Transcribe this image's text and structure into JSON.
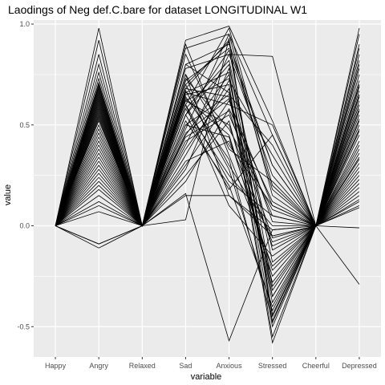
{
  "chart_data": {
    "type": "line",
    "title": "Laodings of Neg def.C.bare for dataset LONGITUDINAL W1",
    "xlabel": "variable",
    "ylabel": "value",
    "categories": [
      "Happy",
      "Angry",
      "Relaxed",
      "Sad",
      "Anxious",
      "Stressed",
      "Cheerful",
      "Depressed"
    ],
    "ylim": [
      -0.65,
      1.02
    ],
    "yticks": [
      -0.5,
      0.0,
      0.5,
      1.0
    ],
    "ytick_labels": [
      "-0.5",
      "0.0",
      "0.5",
      "1.0"
    ],
    "grid": true,
    "panel_color": "#ebebeb",
    "grid_color": "#ffffff",
    "line_color": "#000000",
    "series": [
      {
        "values": [
          0,
          0.98,
          0,
          0.92,
          0.99,
          0.52,
          0,
          0.98
        ]
      },
      {
        "values": [
          0,
          0.92,
          0,
          0.88,
          0.95,
          0.45,
          0,
          0.95
        ]
      },
      {
        "values": [
          0,
          0.85,
          0,
          0.8,
          0.9,
          0.3,
          0,
          0.9
        ]
      },
      {
        "values": [
          0,
          0.8,
          0,
          0.78,
          0.85,
          0.84,
          0,
          0.88
        ]
      },
      {
        "values": [
          0,
          0.76,
          0,
          0.75,
          0.4,
          0.1,
          0,
          0.82
        ]
      },
      {
        "values": [
          0,
          0.73,
          0,
          0.72,
          0.88,
          -0.3,
          0,
          0.8
        ]
      },
      {
        "values": [
          0,
          0.71,
          0,
          0.68,
          0.92,
          -0.45,
          0,
          0.78
        ]
      },
      {
        "values": [
          0,
          0.7,
          0,
          0.66,
          0.6,
          0.5,
          0,
          0.75
        ]
      },
      {
        "values": [
          0,
          0.69,
          0,
          0.9,
          0.35,
          -0.2,
          0,
          0.72
        ]
      },
      {
        "values": [
          0,
          0.68,
          0,
          0.65,
          0.7,
          -0.55,
          0,
          0.7
        ]
      },
      {
        "values": [
          0,
          0.67,
          0,
          0.6,
          0.98,
          0.2,
          0,
          0.69
        ]
      },
      {
        "values": [
          0,
          0.66,
          0,
          0.62,
          0.5,
          -0.1,
          0,
          0.67
        ]
      },
      {
        "values": [
          0,
          0.65,
          0,
          0.7,
          0.3,
          -0.05,
          0,
          0.65
        ]
      },
      {
        "values": [
          0,
          0.64,
          0,
          0.58,
          0.25,
          0.0,
          0,
          0.64
        ]
      },
      {
        "values": [
          0,
          0.63,
          0,
          0.55,
          0.8,
          -0.35,
          0,
          0.62
        ]
      },
      {
        "values": [
          0,
          0.62,
          0,
          0.52,
          0.2,
          -0.4,
          0,
          0.6
        ]
      },
      {
        "values": [
          0,
          0.61,
          0,
          0.5,
          0.65,
          0.4,
          0,
          0.58
        ]
      },
      {
        "values": [
          0,
          0.6,
          0,
          0.48,
          0.95,
          0.15,
          0,
          0.57
        ]
      },
      {
        "values": [
          0,
          0.59,
          0,
          0.63,
          0.45,
          -0.25,
          0,
          0.55
        ]
      },
      {
        "values": [
          0,
          0.58,
          0,
          0.45,
          0.75,
          -0.5,
          0,
          0.53
        ]
      },
      {
        "values": [
          0,
          0.57,
          0,
          0.42,
          0.55,
          0.05,
          0,
          0.52
        ]
      },
      {
        "values": [
          0,
          0.56,
          0,
          0.6,
          0.1,
          -0.15,
          0,
          0.5
        ]
      },
      {
        "values": [
          0,
          0.55,
          0,
          0.4,
          0.85,
          0.25,
          0,
          0.48
        ]
      },
      {
        "values": [
          0,
          0.54,
          0,
          0.38,
          0.68,
          -0.58,
          0,
          0.47
        ]
      },
      {
        "values": [
          0,
          0.53,
          0,
          0.35,
          0.72,
          0.35,
          0,
          0.45
        ]
      },
      {
        "values": [
          0,
          0.52,
          0,
          0.32,
          0.42,
          -0.08,
          0,
          0.42
        ]
      },
      {
        "values": [
          0,
          0.5,
          0,
          0.3,
          0.62,
          0.1,
          0,
          0.4
        ]
      },
      {
        "values": [
          0,
          0.48,
          0,
          0.28,
          0.78,
          -0.12,
          0,
          0.38
        ]
      },
      {
        "values": [
          0,
          0.46,
          0,
          0.25,
          0.52,
          -0.28,
          0,
          0.36
        ]
      },
      {
        "values": [
          0,
          0.44,
          0,
          0.22,
          0.58,
          0.12,
          0,
          0.34
        ]
      },
      {
        "values": [
          0,
          0.42,
          0,
          0.75,
          0.15,
          -0.02,
          0,
          0.33
        ]
      },
      {
        "values": [
          0,
          0.4,
          0,
          0.8,
          0.66,
          -0.38,
          0,
          0.31
        ]
      },
      {
        "values": [
          0,
          0.38,
          0,
          0.85,
          0.38,
          0.22,
          0,
          0.29
        ]
      },
      {
        "values": [
          0,
          0.36,
          0,
          0.58,
          0.82,
          -0.18,
          0,
          0.27
        ]
      },
      {
        "values": [
          0,
          0.34,
          0,
          0.67,
          0.28,
          -0.42,
          0,
          0.25
        ]
      },
      {
        "values": [
          0,
          0.32,
          0,
          0.73,
          0.48,
          0.08,
          0,
          0.23
        ]
      },
      {
        "values": [
          0,
          0.3,
          0,
          0.62,
          0.73,
          -0.32,
          0,
          0.21
        ]
      },
      {
        "values": [
          0,
          0.28,
          0,
          0.55,
          0.87,
          0.3,
          0,
          0.19
        ]
      },
      {
        "values": [
          0,
          0.26,
          0,
          0.5,
          0.44,
          -0.22,
          0,
          0.17
        ]
      },
      {
        "values": [
          0,
          0.24,
          0,
          0.46,
          0.63,
          0.02,
          0,
          0.15
        ]
      },
      {
        "values": [
          0,
          0.22,
          0,
          0.64,
          0.33,
          -0.47,
          0,
          0.13
        ]
      },
      {
        "values": [
          0,
          0.2,
          0,
          0.7,
          0.91,
          0.18,
          0,
          0.12
        ]
      },
      {
        "values": [
          0,
          0.18,
          0,
          0.44,
          0.57,
          -0.06,
          0,
          0.1
        ]
      },
      {
        "values": [
          0,
          0.15,
          0,
          0.15,
          0.15,
          -0.05,
          0,
          0.09
        ]
      },
      {
        "values": [
          0,
          0.12,
          0,
          0.66,
          0.76,
          -0.44,
          0,
          0.6
        ]
      },
      {
        "values": [
          0,
          0.1,
          0,
          0.55,
          0.18,
          0.45,
          0,
          0.65
        ]
      },
      {
        "values": [
          0,
          0.07,
          0,
          0.6,
          0.22,
          0.05,
          0,
          0.7
        ]
      },
      {
        "values": [
          0,
          -0.09,
          0,
          0.03,
          0.93,
          -0.48,
          0,
          -0.29
        ]
      },
      {
        "values": [
          0,
          -0.11,
          0,
          0.16,
          -0.57,
          -0.02,
          0,
          -0.01
        ]
      },
      {
        "values": [
          0,
          -0.09,
          0,
          0.68,
          0.64,
          -0.35,
          0,
          0.85
        ]
      }
    ]
  }
}
